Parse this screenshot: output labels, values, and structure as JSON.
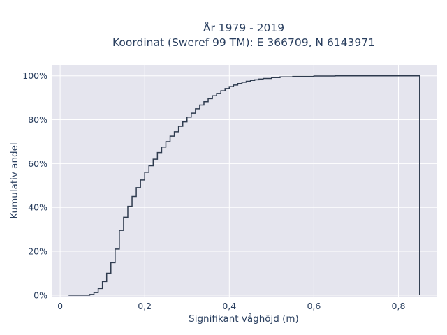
{
  "chart_data": {
    "type": "line",
    "step": true,
    "title_line1": "År 1979 - 2019",
    "title_line2": "Koordinat (Sweref 99 TM): E 366709, N 6143971",
    "xlabel": "Signifikant våghöjd (m)",
    "ylabel": "Kumulativ andel",
    "xlim": [
      -0.02,
      0.89
    ],
    "ylim": [
      -0.01,
      1.05
    ],
    "x_ticks": [
      0,
      0.2,
      0.4,
      0.6,
      0.8
    ],
    "x_tick_labels": [
      "0",
      "0,2",
      "0,4",
      "0,6",
      "0,8"
    ],
    "y_ticks": [
      0,
      0.2,
      0.4,
      0.6,
      0.8,
      1.0
    ],
    "y_tick_labels": [
      "0%",
      "20%",
      "40%",
      "60%",
      "80%",
      "100%"
    ],
    "grid": true,
    "colors": {
      "background": "#e5e5ee",
      "grid": "#ffffff",
      "line": "#2e3b4e",
      "text": "#2a3f5f"
    },
    "series": [
      {
        "x": [
          0.02,
          0.03,
          0.04,
          0.05,
          0.06,
          0.07,
          0.08,
          0.09,
          0.1,
          0.11,
          0.12,
          0.13,
          0.14,
          0.15,
          0.16,
          0.17,
          0.18,
          0.19,
          0.2,
          0.21,
          0.22,
          0.23,
          0.24,
          0.25,
          0.26,
          0.27,
          0.28,
          0.29,
          0.3,
          0.31,
          0.32,
          0.33,
          0.34,
          0.35,
          0.36,
          0.37,
          0.38,
          0.39,
          0.4,
          0.41,
          0.42,
          0.43,
          0.44,
          0.45,
          0.46,
          0.47,
          0.48,
          0.5,
          0.52,
          0.55,
          0.6,
          0.65,
          0.7,
          0.85
        ],
        "y": [
          0.0,
          0.0,
          0.0,
          0.0,
          0.0,
          0.003,
          0.012,
          0.03,
          0.062,
          0.1,
          0.148,
          0.21,
          0.295,
          0.355,
          0.405,
          0.45,
          0.49,
          0.525,
          0.56,
          0.59,
          0.62,
          0.65,
          0.675,
          0.7,
          0.725,
          0.745,
          0.77,
          0.79,
          0.812,
          0.83,
          0.85,
          0.867,
          0.882,
          0.896,
          0.909,
          0.92,
          0.932,
          0.942,
          0.951,
          0.958,
          0.965,
          0.971,
          0.975,
          0.979,
          0.982,
          0.985,
          0.988,
          0.992,
          0.995,
          0.997,
          0.999,
          1.0,
          1.0,
          1.0
        ]
      }
    ]
  }
}
